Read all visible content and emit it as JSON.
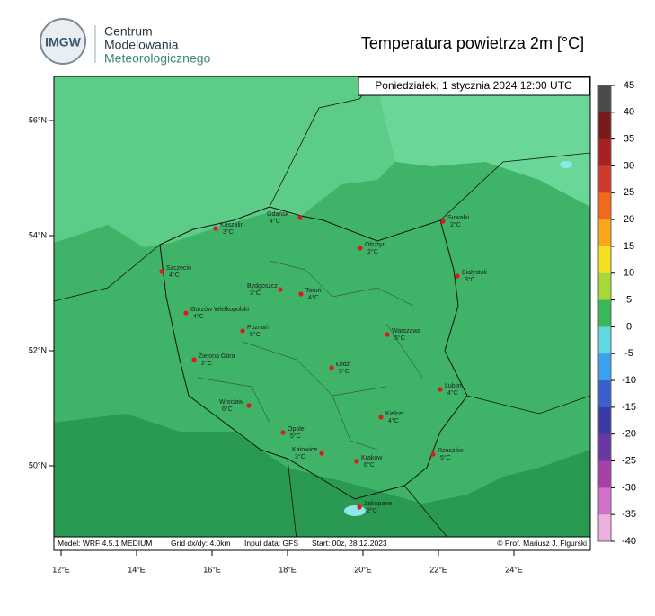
{
  "header": {
    "logo": "IMGW",
    "org": [
      "Centrum",
      "Modelowania",
      "Meteorologicznego"
    ],
    "title": "Temperatura powietrza 2m [°C]",
    "date": "Poniedziałek, 1 stycznia 2024 12:00 UTC"
  },
  "map": {
    "lat_ticks": [
      {
        "value": 56,
        "label": "56°N"
      },
      {
        "value": 54,
        "label": "54°N"
      },
      {
        "value": 52,
        "label": "52°N"
      },
      {
        "value": 50,
        "label": "50°N"
      }
    ],
    "lon_ticks": [
      {
        "value": 12,
        "label": "12°E"
      },
      {
        "value": 14,
        "label": "14°E"
      },
      {
        "value": 16,
        "label": "16°E"
      },
      {
        "value": 18,
        "label": "18°E"
      },
      {
        "value": 20,
        "label": "20°E"
      },
      {
        "value": 22,
        "label": "22°E"
      },
      {
        "value": 24,
        "label": "24°E"
      }
    ],
    "cities": [
      {
        "name": "Koszalin",
        "temp": "3°C"
      },
      {
        "name": "Gdańsk",
        "temp": "4°C"
      },
      {
        "name": "Suwałki",
        "temp": "2°C"
      },
      {
        "name": "Olsztyn",
        "temp": "2°C"
      },
      {
        "name": "Szczecin",
        "temp": "4°C"
      },
      {
        "name": "Białystok",
        "temp": "3°C"
      },
      {
        "name": "Bydgoszcz",
        "temp": "3°C"
      },
      {
        "name": "Toruń",
        "temp": "4°C"
      },
      {
        "name": "Gorzów Wielkopolski",
        "temp": "4°C"
      },
      {
        "name": "Poznań",
        "temp": "5°C"
      },
      {
        "name": "Warszawa",
        "temp": "5°C"
      },
      {
        "name": "Zielona Góra",
        "temp": "2°C"
      },
      {
        "name": "Łódź",
        "temp": "5°C"
      },
      {
        "name": "Lublin",
        "temp": "4°C"
      },
      {
        "name": "Wrocław",
        "temp": "6°C"
      },
      {
        "name": "Kielce",
        "temp": "4°C"
      },
      {
        "name": "Opole",
        "temp": "5°C"
      },
      {
        "name": "Katowice",
        "temp": "3°C"
      },
      {
        "name": "Rzeszów",
        "temp": "5°C"
      },
      {
        "name": "Kraków",
        "temp": "6°C"
      },
      {
        "name": "Zakopane",
        "temp": "2°C"
      }
    ]
  },
  "colorbar": {
    "ticks": [
      45,
      40,
      35,
      30,
      25,
      20,
      15,
      10,
      5,
      0,
      -5,
      -10,
      -15,
      -20,
      -25,
      -30,
      -35,
      -40
    ],
    "colors": [
      "#4a4a4a",
      "#7a1a1a",
      "#a82020",
      "#d03a2a",
      "#f06a1a",
      "#f8a818",
      "#f4e020",
      "#a8d838",
      "#38b858",
      "#60d8e0",
      "#3aa0f0",
      "#3a60d0",
      "#3a3aa8",
      "#6a38a0",
      "#a840a8",
      "#d070c8",
      "#eeb0dc"
    ]
  },
  "footer": {
    "model": "Model: WRF 4.5.1 MEDIUM",
    "grid": "Grid dx/dy: 4.0km",
    "input": "Input data: GFS",
    "start": "Start: 00z, 28.12.2023",
    "credit": "© Prof. Mariusz J. Figurski"
  }
}
